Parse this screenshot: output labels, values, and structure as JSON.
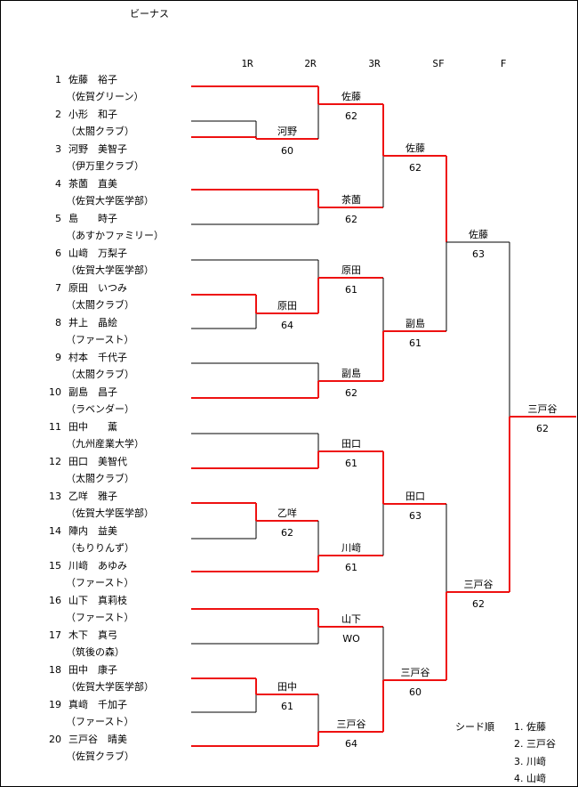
{
  "title": "ビーナス",
  "rounds": [
    "1R",
    "2R",
    "3R",
    "SF",
    "F"
  ],
  "players": [
    {
      "num": "1",
      "name": "佐藤　裕子",
      "club": "（佐賀グリーン）"
    },
    {
      "num": "2",
      "name": "小形　和子",
      "club": "（太閤クラブ）"
    },
    {
      "num": "3",
      "name": "河野　美智子",
      "club": "（伊万里クラブ）"
    },
    {
      "num": "4",
      "name": "茶薗　直美",
      "club": "（佐賀大学医学部）"
    },
    {
      "num": "5",
      "name": "島　　時子",
      "club": "（あすかファミリー）"
    },
    {
      "num": "6",
      "name": "山﨑　万梨子",
      "club": "（佐賀大学医学部）"
    },
    {
      "num": "7",
      "name": "原田　いつみ",
      "club": "（太閤クラブ）"
    },
    {
      "num": "8",
      "name": "井上　晶絵",
      "club": "（ファースト）"
    },
    {
      "num": "9",
      "name": "村本　千代子",
      "club": "（太閤クラブ）"
    },
    {
      "num": "10",
      "name": "副島　昌子",
      "club": "（ラベンダー）"
    },
    {
      "num": "11",
      "name": "田中　　薫",
      "club": "（九州産業大学）"
    },
    {
      "num": "12",
      "name": "田口　美智代",
      "club": "（太閤クラブ）"
    },
    {
      "num": "13",
      "name": "乙咩　雅子",
      "club": "（佐賀大学医学部）"
    },
    {
      "num": "14",
      "name": "陣内　益美",
      "club": "（もりりんず）"
    },
    {
      "num": "15",
      "name": "川﨑　あゆみ",
      "club": "（ファースト）"
    },
    {
      "num": "16",
      "name": "山下　真莉枝",
      "club": "（ファースト）"
    },
    {
      "num": "17",
      "name": "木下　真弓",
      "club": "（筑後の森）"
    },
    {
      "num": "18",
      "name": "田中　康子",
      "club": "（佐賀大学医学部）"
    },
    {
      "num": "19",
      "name": "真﨑　千加子",
      "club": "（ファースト）"
    },
    {
      "num": "20",
      "name": "三戸谷　晴美",
      "club": "（佐賀クラブ）"
    }
  ],
  "results": {
    "r1": [
      {
        "winner": "河野",
        "score": "60"
      },
      {
        "winner": "原田",
        "score": "64"
      },
      {
        "winner": "乙咩",
        "score": "62"
      },
      {
        "winner": "田中",
        "score": "61"
      }
    ],
    "r2": [
      {
        "winner": "佐藤",
        "score": "62"
      },
      {
        "winner": "茶薗",
        "score": "62"
      },
      {
        "winner": "原田",
        "score": "61"
      },
      {
        "winner": "副島",
        "score": "62"
      },
      {
        "winner": "田口",
        "score": "61"
      },
      {
        "winner": "川﨑",
        "score": "61"
      },
      {
        "winner": "山下",
        "score": "WO"
      },
      {
        "winner": "三戸谷",
        "score": "64"
      }
    ],
    "r3": [
      {
        "winner": "佐藤",
        "score": "62"
      },
      {
        "winner": "副島",
        "score": "61"
      },
      {
        "winner": "田口",
        "score": "63"
      },
      {
        "winner": "三戸谷",
        "score": "60"
      }
    ],
    "sf": [
      {
        "winner": "佐藤",
        "score": "63"
      },
      {
        "winner": "三戸谷",
        "score": "62"
      }
    ],
    "final": {
      "winner": "三戸谷",
      "score": "62"
    }
  },
  "seeds": {
    "label": "シード順",
    "items": [
      "1. 佐藤",
      "2. 三戸谷",
      "3. 川﨑",
      "4. 山﨑"
    ]
  },
  "colors": {
    "win": "#ee1111",
    "lose": "#000000"
  }
}
